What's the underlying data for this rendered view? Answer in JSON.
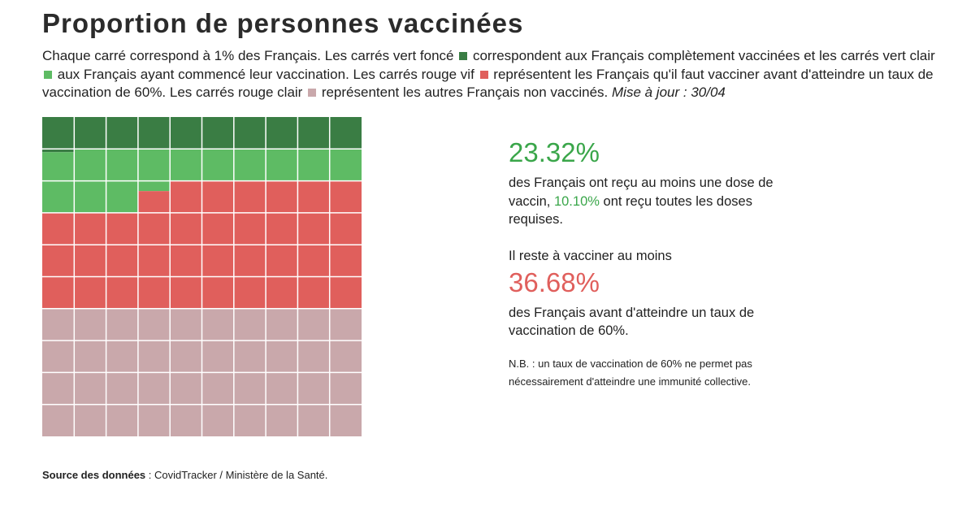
{
  "title": "Proportion de personnes vaccinées",
  "description": {
    "p1": "Chaque carré correspond à 1% des Français. Les carrés vert foncé",
    "p2": "correspondent aux Français complètement vaccinées et les carrés vert clair",
    "p3": "aux Français ayant commencé leur vaccination. Les carrés rouge vif",
    "p4": "représentent les Français qu'il faut vacciner avant d'atteindre un taux de vaccination de 60%. Les carrés rouge clair",
    "p5": "représentent les autres Français non vaccinés.",
    "update": "Mise à jour : 30/04"
  },
  "stats": {
    "first_dose_pct": "23.32%",
    "first_dose_text_a": "des Français ont reçu au moins une dose de vaccin,",
    "full_pct": "10.10%",
    "first_dose_text_b": "ont reçu toutes les doses requises.",
    "remain_intro": "Il reste à vacciner au moins",
    "remain_pct": "36.68%",
    "remain_text": "des Français avant d'atteindre un taux de vaccination de 60%.",
    "note": "N.B. : un taux de vaccination de 60% ne permet pas nécessairement d'atteindre une immunité collective."
  },
  "source": {
    "label": "Source des données",
    "text": " : CovidTracker / Ministère de la Santé."
  },
  "colors": {
    "dark_green": "#3a7d44",
    "light_green": "#5ebb64",
    "red": "#e05f5c",
    "light_red": "#c9a8ab",
    "green_text": "#3aa64a",
    "red_text": "#e05f5c"
  },
  "chart_data": {
    "type": "waffle",
    "grid": [
      10,
      10
    ],
    "unit": "1% des Français",
    "segments": [
      {
        "category": "complètement vaccinés",
        "value": 10.1,
        "color": "#3a7d44"
      },
      {
        "category": "vaccination commencée",
        "value": 13.22,
        "color": "#5ebb64"
      },
      {
        "category": "à vacciner avant 60%",
        "value": 36.68,
        "color": "#e05f5c"
      },
      {
        "category": "autres non vaccinés",
        "value": 40.0,
        "color": "#c9a8ab"
      }
    ]
  }
}
